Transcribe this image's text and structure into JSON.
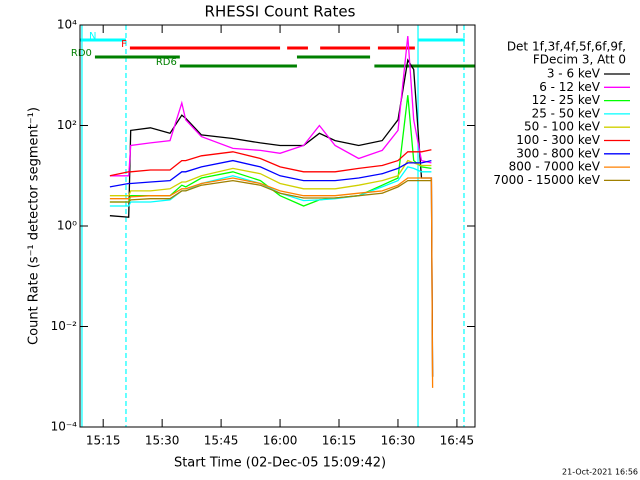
{
  "chart_data": {
    "type": "line",
    "title": "RHESSI Count Rates",
    "x_label": "Start Time (02-Dec-05 15:09:42)",
    "y_label": "Count Rate (s⁻¹ detector segment⁻¹)",
    "legend_title": [
      "Det 1f,3f,4f,5f,6f,9f,",
      "FDecim 3, Att 0"
    ],
    "footer": "21-Oct-2021 16:56",
    "y_scale": "log",
    "xlim": [
      9.1,
      109.6
    ],
    "ylim": [
      0.0001,
      10000
    ],
    "xticks": [
      {
        "value": 15,
        "label": "15:15"
      },
      {
        "value": 30,
        "label": "15:30"
      },
      {
        "value": 45,
        "label": "15:45"
      },
      {
        "value": 60,
        "label": "16:00"
      },
      {
        "value": 75,
        "label": "16:15"
      },
      {
        "value": 90,
        "label": "16:30"
      },
      {
        "value": 105,
        "label": "16:45"
      }
    ],
    "yticks": [
      {
        "value": 0.0001,
        "label": "10⁻⁴"
      },
      {
        "value": 0.01,
        "label": "10⁻²"
      },
      {
        "value": 1,
        "label": "10⁰"
      },
      {
        "value": 100,
        "label": "10²"
      },
      {
        "value": 10000,
        "label": "10⁴"
      }
    ],
    "x": [
      16.7,
      21.5,
      22,
      27,
      32,
      35,
      36,
      40,
      48,
      55,
      60,
      66,
      70,
      74,
      80,
      86,
      90,
      92.5,
      94,
      96,
      98.5,
      98.8
    ],
    "series": [
      {
        "name": "3 - 6 keV",
        "color": "#000000",
        "values": [
          1.6,
          1.5,
          80,
          90,
          70,
          160,
          140,
          65,
          55,
          45,
          40,
          40,
          70,
          50,
          40,
          50,
          130,
          2000,
          1300,
          9,
          9,
          0.001
        ]
      },
      {
        "name": "6 - 12 keV",
        "color": "#ff00ff",
        "values": [
          10,
          10,
          40,
          45,
          50,
          280,
          130,
          60,
          35,
          32,
          28,
          40,
          100,
          40,
          22,
          32,
          80,
          6000,
          130,
          20,
          18,
          null
        ]
      },
      {
        "name": "12 - 25 keV",
        "color": "#00ff00",
        "values": [
          3,
          3,
          4,
          4,
          4,
          6.5,
          6,
          9,
          12,
          8,
          4,
          2.5,
          3.3,
          3.6,
          4,
          6.5,
          9,
          400,
          20,
          15,
          14,
          null
        ]
      },
      {
        "name": "25 - 50 keV",
        "color": "#00ffff",
        "values": [
          2.5,
          2.5,
          3,
          3,
          3.3,
          5,
          5,
          7,
          10,
          7,
          4.5,
          3.2,
          3.3,
          3.5,
          4,
          6,
          8,
          15,
          14,
          12,
          12,
          null
        ]
      },
      {
        "name": "50 - 100 keV",
        "color": "#d0d000",
        "values": [
          4,
          4,
          5,
          5,
          5.5,
          7.5,
          7.5,
          10,
          14,
          11,
          7,
          5.5,
          5.5,
          5.5,
          6.5,
          8,
          10,
          20,
          18,
          16,
          16,
          null
        ]
      },
      {
        "name": "100 - 300 keV",
        "color": "#ff0000",
        "values": [
          10,
          12,
          12,
          13,
          13,
          20,
          20,
          25,
          30,
          22,
          15,
          12,
          12,
          12,
          14,
          16,
          20,
          30,
          30,
          30,
          33,
          null
        ]
      },
      {
        "name": "300 - 800 keV",
        "color": "#0000ff",
        "values": [
          6,
          7,
          7,
          7.5,
          8,
          12,
          12,
          15,
          20,
          15,
          10,
          8,
          8,
          8,
          9,
          11,
          14,
          18,
          18,
          18,
          20,
          null
        ]
      },
      {
        "name": "800 - 7000 keV",
        "color": "#ff8000",
        "values": [
          3.5,
          3.5,
          3.8,
          4,
          4,
          5.5,
          5.5,
          7,
          9,
          7,
          5,
          4,
          4,
          4,
          4.5,
          5,
          6.5,
          9,
          9,
          9,
          9,
          0.0006
        ]
      },
      {
        "name": "7000 - 15000 keV",
        "color": "#a08000",
        "values": [
          3,
          3,
          3.3,
          3.5,
          3.5,
          5,
          5,
          6.5,
          8,
          6.5,
          4.5,
          3.6,
          3.6,
          3.6,
          4,
          4.5,
          6,
          8,
          8,
          8,
          8,
          null
        ]
      }
    ],
    "flags": [
      {
        "label": "N",
        "color": "#00ffff",
        "segments": [
          [
            9.1,
            20.8
          ],
          [
            95.1,
            107.0
          ]
        ]
      },
      {
        "label": "F",
        "color": "#ff0000",
        "segments": [
          [
            21.8,
            60.0
          ],
          [
            61.8,
            67.1
          ],
          [
            70.2,
            82.9
          ],
          [
            84.9,
            94.3
          ]
        ]
      },
      {
        "label": "RD0",
        "color": "#008000",
        "segments": [
          [
            12.9,
            34.5
          ],
          [
            64.3,
            82.9
          ]
        ]
      },
      {
        "label": "RD6",
        "color": "#008000",
        "segments": [
          [
            34.5,
            64.3
          ],
          [
            84.0,
            109.6
          ]
        ]
      }
    ],
    "vlines": [
      {
        "x": 9.6,
        "color": "#00ffff",
        "style": "solid"
      },
      {
        "x": 20.8,
        "color": "#00ffff",
        "style": "dashed"
      },
      {
        "x": 95.1,
        "color": "#00ffff",
        "style": "solid"
      },
      {
        "x": 106.8,
        "color": "#00ffff",
        "style": "dashed"
      }
    ]
  }
}
